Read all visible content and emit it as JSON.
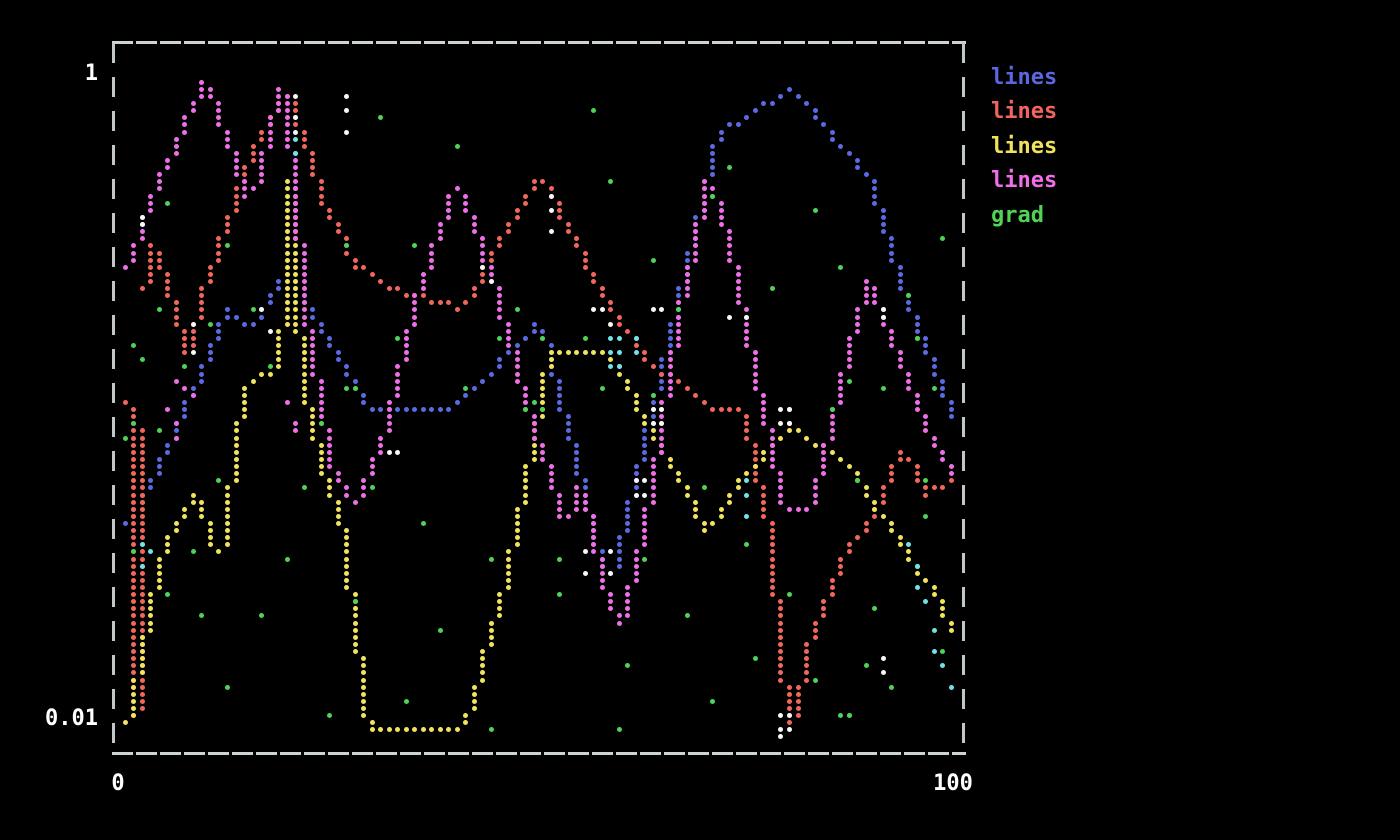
{
  "figure": {
    "background": "#000000",
    "border_color": "#cdd2d3",
    "text_color": "#ffffff"
  },
  "axes": {
    "y_top_label": "1",
    "y_bottom_label": "0.01",
    "x_left_label": "0",
    "x_right_label": "100",
    "y_scale": "log",
    "x_min": 0,
    "x_max": 100,
    "y_min": 0.01,
    "y_max": 1
  },
  "legend": {
    "items": [
      {
        "label": "lines",
        "color": "#5a67e0"
      },
      {
        "label": "lines",
        "color": "#f1645f"
      },
      {
        "label": "lines",
        "color": "#f0e35b"
      },
      {
        "label": "lines",
        "color": "#f06fe8"
      },
      {
        "label": "grad",
        "color": "#4fd455"
      }
    ]
  },
  "chart_data": {
    "type": "scatter",
    "title": "",
    "xlabel": "",
    "ylabel": "",
    "x_range": [
      0,
      100
    ],
    "y_range": [
      0.01,
      1
    ],
    "y_scale": "log",
    "grid": false,
    "legend_position": "outside-right",
    "series": [
      {
        "name": "lines",
        "kind": "line",
        "color": "#5b6ae3",
        "points": [
          [
            0.5,
            0.038
          ],
          [
            6,
            0.07
          ],
          [
            13,
            0.19
          ],
          [
            16,
            0.165
          ],
          [
            20,
            0.245
          ],
          [
            30,
            0.092
          ],
          [
            40,
            0.092
          ],
          [
            50,
            0.17
          ],
          [
            57,
            0.032
          ],
          [
            58.5,
            0.028
          ],
          [
            64,
            0.112
          ],
          [
            71,
            0.64
          ],
          [
            80,
            0.91
          ],
          [
            89,
            0.48
          ],
          [
            93,
            0.22
          ],
          [
            99.5,
            0.079
          ]
        ]
      },
      {
        "name": "lines",
        "kind": "line",
        "color": "#f2675c",
        "points": [
          [
            0.3,
            0.22
          ],
          [
            1.3,
            0.07
          ],
          [
            2,
            0.0095
          ],
          [
            2.8,
            0.2
          ],
          [
            4,
            0.3
          ],
          [
            5.5,
            0.24
          ],
          [
            8,
            0.132
          ],
          [
            10,
            0.21
          ],
          [
            15,
            0.52
          ],
          [
            20,
            0.9
          ],
          [
            24,
            0.42
          ],
          [
            28,
            0.26
          ],
          [
            34,
            0.21
          ],
          [
            41,
            0.19
          ],
          [
            46,
            0.33
          ],
          [
            50,
            0.5
          ],
          [
            53,
            0.35
          ],
          [
            57,
            0.215
          ],
          [
            63,
            0.13
          ],
          [
            70,
            0.095
          ],
          [
            74,
            0.09
          ],
          [
            77,
            0.04
          ],
          [
            79.5,
            0.0088
          ],
          [
            82,
            0.018
          ],
          [
            86,
            0.032
          ],
          [
            90,
            0.045
          ],
          [
            93,
            0.07
          ],
          [
            96,
            0.05
          ],
          [
            99.5,
            0.055
          ]
        ]
      },
      {
        "name": "lines",
        "kind": "line",
        "color": "#f1e45c",
        "points": [
          [
            1,
            0.01
          ],
          [
            5,
            0.032
          ],
          [
            9,
            0.05
          ],
          [
            12,
            0.031
          ],
          [
            14.5,
            0.1
          ],
          [
            17,
            0.12
          ],
          [
            19,
            0.12
          ],
          [
            20,
            0.59
          ],
          [
            21.5,
            0.12
          ],
          [
            24,
            0.06
          ],
          [
            26,
            0.045
          ],
          [
            29.5,
            0.0095
          ],
          [
            41,
            0.0095
          ],
          [
            46,
            0.028
          ],
          [
            51,
            0.135
          ],
          [
            58,
            0.14
          ],
          [
            63,
            0.08
          ],
          [
            70,
            0.038
          ],
          [
            74,
            0.056
          ],
          [
            80,
            0.08
          ],
          [
            86,
            0.065
          ],
          [
            93,
            0.035
          ],
          [
            97,
            0.024
          ],
          [
            99.4,
            0.018
          ]
        ]
      },
      {
        "name": "lines",
        "kind": "line",
        "color": "#ee70e6",
        "points": [
          [
            0.5,
            0.235
          ],
          [
            4,
            0.42
          ],
          [
            8,
            0.72
          ],
          [
            10.5,
            0.98
          ],
          [
            13,
            0.6
          ],
          [
            15.5,
            0.39
          ],
          [
            19.5,
            0.98
          ],
          [
            22,
            0.18
          ],
          [
            25,
            0.063
          ],
          [
            28,
            0.045
          ],
          [
            31,
            0.07
          ],
          [
            35,
            0.19
          ],
          [
            40,
            0.47
          ],
          [
            44,
            0.25
          ],
          [
            48,
            0.1
          ],
          [
            53,
            0.04
          ],
          [
            55,
            0.056
          ],
          [
            57,
            0.028
          ],
          [
            59.5,
            0.02
          ],
          [
            61,
            0.028
          ],
          [
            63,
            0.05
          ],
          [
            66,
            0.16
          ],
          [
            70,
            0.5
          ],
          [
            73,
            0.25
          ],
          [
            76,
            0.1
          ],
          [
            79,
            0.045
          ],
          [
            82,
            0.045
          ],
          [
            86,
            0.125
          ],
          [
            89,
            0.235
          ],
          [
            92,
            0.14
          ],
          [
            95,
            0.089
          ],
          [
            99.5,
            0.056
          ]
        ]
      },
      {
        "name": "grad",
        "kind": "scatter",
        "color": "#4dd355",
        "points": [
          [
            1.5,
            0.075
          ],
          [
            1.8,
            0.034
          ],
          [
            2,
            0.142
          ],
          [
            2.5,
            0.085
          ],
          [
            3.5,
            0.13
          ],
          [
            4.7,
            0.08
          ],
          [
            5,
            0.185
          ],
          [
            6,
            0.025
          ],
          [
            6.3,
            0.395
          ],
          [
            8,
            0.125
          ],
          [
            8.7,
            0.034
          ],
          [
            10.5,
            0.0215
          ],
          [
            11.2,
            0.168
          ],
          [
            12,
            0.055
          ],
          [
            13,
            0.0125
          ],
          [
            13.5,
            0.3
          ],
          [
            16.3,
            0.19
          ],
          [
            17,
            0.021
          ],
          [
            18.5,
            0.125
          ],
          [
            20.5,
            0.032
          ],
          [
            22.5,
            0.052
          ],
          [
            24,
            0.085
          ],
          [
            25.5,
            0.0105
          ],
          [
            27,
            0.105
          ],
          [
            27.8,
            0.105
          ],
          [
            27.5,
            0.3
          ],
          [
            28,
            0.0235
          ],
          [
            30.5,
            0.052
          ],
          [
            31.7,
            0.74
          ],
          [
            33.5,
            0.155
          ],
          [
            34,
            0.0117
          ],
          [
            35,
            0.3
          ],
          [
            36.5,
            0.04
          ],
          [
            38.5,
            0.019
          ],
          [
            40.7,
            0.59
          ],
          [
            41.5,
            0.105
          ],
          [
            44,
            0.032
          ],
          [
            44.5,
            0.0095
          ],
          [
            45.5,
            0.155
          ],
          [
            47.5,
            0.185
          ],
          [
            48,
            0.09
          ],
          [
            49.5,
            0.095
          ],
          [
            50,
            0.155
          ],
          [
            51,
            0.09
          ],
          [
            52.2,
            0.031
          ],
          [
            52.5,
            0.025
          ],
          [
            55.5,
            0.155
          ],
          [
            56.3,
            0.76
          ],
          [
            58,
            0.105
          ],
          [
            59,
            0.47
          ],
          [
            60,
            0.0095
          ],
          [
            60.5,
            0.0145
          ],
          [
            63,
            0.032
          ],
          [
            63.5,
            0.27
          ],
          [
            64,
            0.1
          ],
          [
            66.5,
            0.185
          ],
          [
            68,
            0.021
          ],
          [
            69.5,
            0.052
          ],
          [
            70.5,
            0.42
          ],
          [
            71,
            0.0117
          ],
          [
            72.5,
            0.52
          ],
          [
            75,
            0.035
          ],
          [
            75.9,
            0.0155
          ],
          [
            77.5,
            0.22
          ],
          [
            79.5,
            0.085
          ],
          [
            80,
            0.025
          ],
          [
            82.7,
            0.38
          ],
          [
            83,
            0.013
          ],
          [
            85,
            0.092
          ],
          [
            85.5,
            0.0105
          ],
          [
            86.4,
            0.0105
          ],
          [
            87.2,
            0.0105
          ],
          [
            86,
            0.25
          ],
          [
            86.5,
            0.115
          ],
          [
            87.5,
            0.055
          ],
          [
            88.5,
            0.0148
          ],
          [
            89.5,
            0.022
          ],
          [
            90.5,
            0.105
          ],
          [
            92,
            0.0125
          ],
          [
            94,
            0.21
          ],
          [
            94.5,
            0.155
          ],
          [
            95.3,
            0.155
          ],
          [
            95.5,
            0.042
          ],
          [
            96,
            0.055
          ],
          [
            97,
            0.105
          ],
          [
            98,
            0.016
          ],
          [
            98.2,
            0.305
          ]
        ]
      }
    ],
    "extra_points": [
      {
        "name": "overlap-white",
        "color": "#f8f8f8",
        "points": [
          [
            2.9,
            0.36
          ],
          [
            3.3,
            0.345
          ],
          [
            21.3,
            0.84
          ],
          [
            21.3,
            0.74
          ],
          [
            21.3,
            0.655
          ],
          [
            27.3,
            0.86
          ],
          [
            27.3,
            0.76
          ],
          [
            27.3,
            0.675
          ],
          [
            9,
            0.168
          ],
          [
            9,
            0.141
          ],
          [
            17.2,
            0.187
          ],
          [
            17.9,
            0.162
          ],
          [
            32.4,
            0.069
          ],
          [
            33.2,
            0.069
          ],
          [
            43.3,
            0.248
          ],
          [
            44.1,
            0.231
          ],
          [
            51.2,
            0.43
          ],
          [
            51.2,
            0.38
          ],
          [
            51.2,
            0.335
          ],
          [
            56.8,
            0.184
          ],
          [
            57.6,
            0.184
          ],
          [
            58.4,
            0.168
          ],
          [
            63.9,
            0.19
          ],
          [
            64.7,
            0.19
          ],
          [
            63.7,
            0.093
          ],
          [
            64.5,
            0.093
          ],
          [
            63.7,
            0.082
          ],
          [
            64.5,
            0.082
          ],
          [
            61.9,
            0.056
          ],
          [
            62.7,
            0.056
          ],
          [
            61.9,
            0.049
          ],
          [
            62.7,
            0.049
          ],
          [
            55.7,
            0.0327
          ],
          [
            58.5,
            0.0327
          ],
          [
            55.7,
            0.029
          ],
          [
            58.5,
            0.029
          ],
          [
            72.3,
            0.178
          ],
          [
            75.2,
            0.178
          ],
          [
            78.6,
            0.093
          ],
          [
            79.4,
            0.093
          ],
          [
            80.2,
            0.093
          ],
          [
            78.6,
            0.082
          ],
          [
            79.4,
            0.082
          ],
          [
            80.2,
            0.082
          ],
          [
            90.5,
            0.19
          ],
          [
            90.5,
            0.175
          ],
          [
            90.6,
            0.0157
          ],
          [
            90.6,
            0.0143
          ],
          [
            78.8,
            0.0105
          ],
          [
            79.6,
            0.0105
          ],
          [
            78.8,
            0.0095
          ],
          [
            79.6,
            0.0095
          ],
          [
            79.2,
            0.0088
          ]
        ]
      },
      {
        "name": "overlap-cyan",
        "color": "#6fe3e8",
        "points": [
          [
            3.4,
            0.035
          ],
          [
            3.4,
            0.03
          ],
          [
            4.1,
            0.0325
          ],
          [
            21.6,
            0.63
          ],
          [
            21.6,
            0.56
          ],
          [
            58.6,
            0.152
          ],
          [
            60,
            0.152
          ],
          [
            61.4,
            0.152
          ],
          [
            58.6,
            0.138
          ],
          [
            60,
            0.138
          ],
          [
            61.4,
            0.138
          ],
          [
            58.6,
            0.127
          ],
          [
            60,
            0.127
          ],
          [
            75.2,
            0.056
          ],
          [
            75.2,
            0.049
          ],
          [
            75.2,
            0.043
          ],
          [
            93.8,
            0.035
          ],
          [
            94.6,
            0.03
          ],
          [
            95.2,
            0.026
          ],
          [
            95.8,
            0.0235
          ],
          [
            96.6,
            0.019
          ],
          [
            97.4,
            0.0165
          ],
          [
            98.3,
            0.0145
          ],
          [
            99,
            0.0125
          ]
        ]
      },
      {
        "name": "extra-violet",
        "color": "#ee70e6",
        "points": [
          [
            6.4,
            0.092
          ],
          [
            7,
            0.085
          ],
          [
            7.5,
            0.115
          ],
          [
            8.3,
            0.108
          ],
          [
            8.7,
            0.103
          ],
          [
            6.8,
            0.075
          ],
          [
            20.5,
            0.095
          ],
          [
            20.9,
            0.085
          ],
          [
            21.3,
            0.078
          ]
        ]
      }
    ]
  }
}
